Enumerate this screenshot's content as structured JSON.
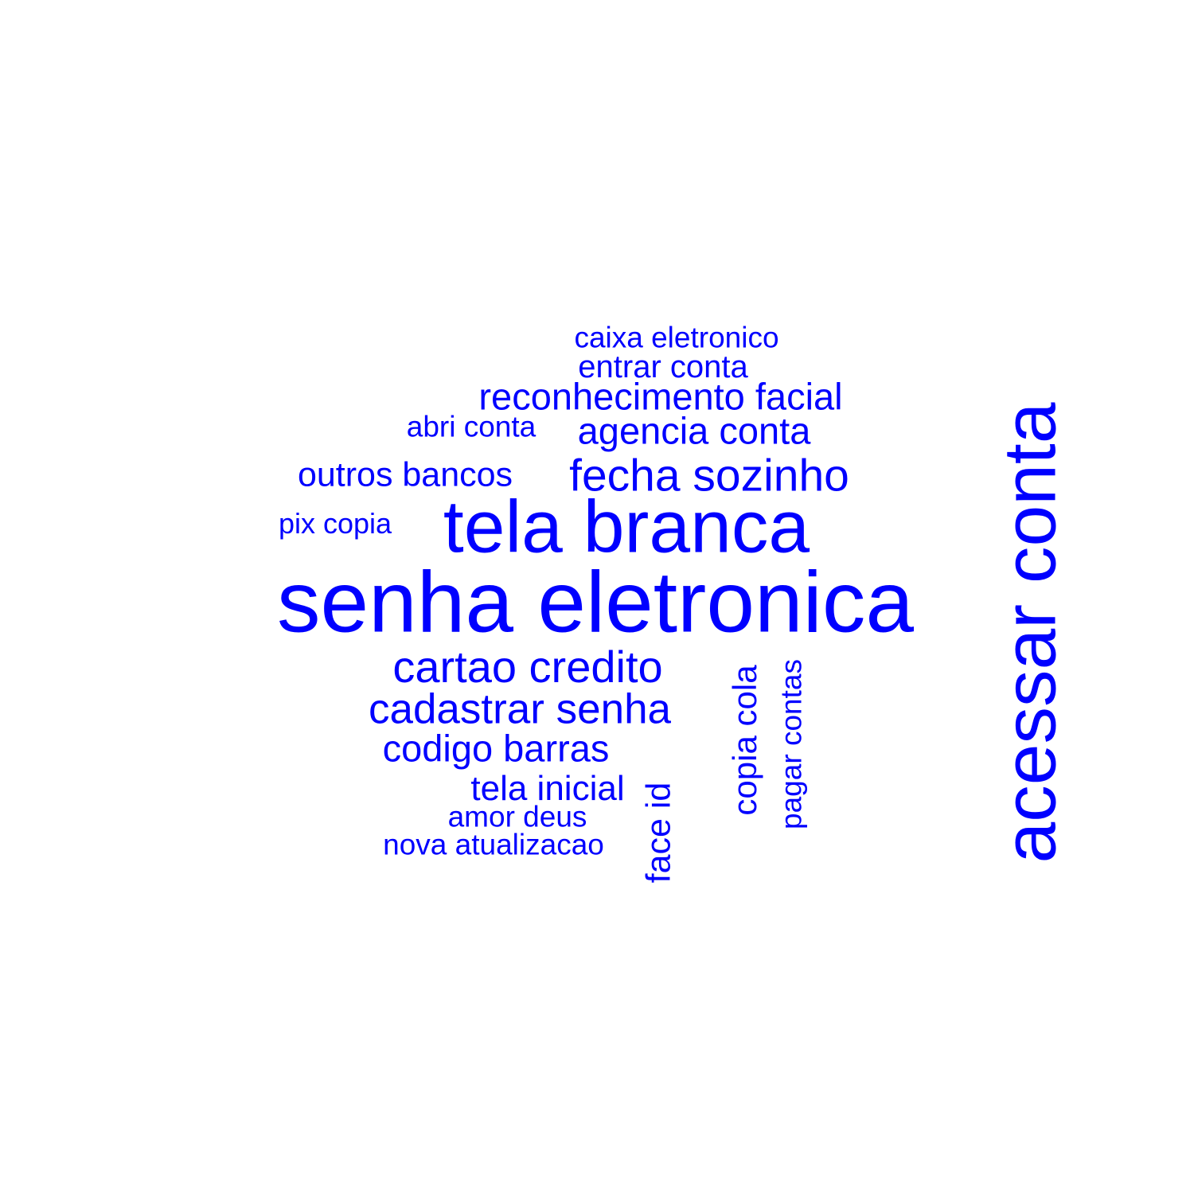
{
  "colors": {
    "background": "#ffffff",
    "words": "#0000ff"
  },
  "words": {
    "senha_eletronica": "senha eletronica",
    "tela_branca": "tela branca",
    "acessar_conta": "acessar conta",
    "fecha_sozinho": "fecha sozinho",
    "cartao_credito": "cartao credito",
    "cadastrar_senha": "cadastrar senha",
    "reconhecimento_facial": "reconhecimento facial",
    "agencia_conta": "agencia conta",
    "codigo_barras": "codigo barras",
    "tela_inicial": "tela inicial",
    "outros_bancos": "outros bancos",
    "entrar_conta": "entrar conta",
    "caixa_eletronico": "caixa eletronico",
    "abri_conta": "abri conta",
    "pix_copia": "pix copia",
    "amor_deus": "amor deus",
    "nova_atualizacao": "nova atualizacao",
    "face_id": "face id",
    "copia_cola": "copia cola",
    "pagar_contas": "pagar contas"
  }
}
